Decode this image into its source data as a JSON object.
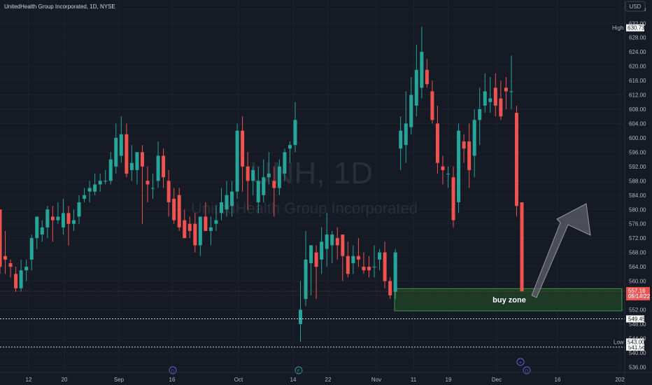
{
  "header": {
    "title": "UnitedHealth Group Incorporated, 1D, NYSE",
    "currency_button": "USD"
  },
  "watermark": {
    "symbol": "UNH, 1D",
    "name": "UnitedHealth Group Incorporated"
  },
  "colors": {
    "background": "#161a25",
    "up": "#26a69a",
    "down": "#ef5350",
    "grid": "#1e222d",
    "buy_zone_fill": "#1e3a26",
    "buy_zone_border": "#2e9e44",
    "arrow": "#5d606b"
  },
  "chart_data": {
    "type": "candlestick",
    "title": "UnitedHealth Group Incorporated, 1D, NYSE",
    "ylim": [
      534.5,
      638.5
    ],
    "y_ticks": [
      "536.00",
      "540.00",
      "544.00",
      "548.00",
      "552.00",
      "556.00",
      "560.00",
      "564.00",
      "568.00",
      "572.00",
      "576.00",
      "580.00",
      "584.00",
      "588.00",
      "592.00",
      "596.00",
      "600.00",
      "604.00",
      "608.00",
      "612.00",
      "616.00",
      "620.00",
      "624.00",
      "628.00",
      "632.00",
      "636.00"
    ],
    "x_ticks": [
      "12",
      "20",
      "Sep",
      "16",
      "Oct",
      "14",
      "22",
      "Nov",
      "11",
      "19",
      "Dec",
      "16",
      "202"
    ],
    "candles": [
      {
        "o": 580,
        "h": 580,
        "l": 562,
        "c": 564
      },
      {
        "o": 567,
        "h": 574,
        "l": 562,
        "c": 566
      },
      {
        "o": 565,
        "h": 566,
        "l": 561,
        "c": 564
      },
      {
        "o": 562,
        "h": 564,
        "l": 557,
        "c": 558
      },
      {
        "o": 558,
        "h": 566,
        "l": 557,
        "c": 563
      },
      {
        "o": 563,
        "h": 566,
        "l": 560,
        "c": 564
      },
      {
        "o": 566,
        "h": 573,
        "l": 563,
        "c": 572
      },
      {
        "o": 572,
        "h": 578,
        "l": 569,
        "c": 578
      },
      {
        "o": 573,
        "h": 577,
        "l": 571,
        "c": 575
      },
      {
        "o": 575,
        "h": 581,
        "l": 572,
        "c": 580
      },
      {
        "o": 578,
        "h": 581,
        "l": 571,
        "c": 577
      },
      {
        "o": 577,
        "h": 582,
        "l": 576,
        "c": 578
      },
      {
        "o": 575,
        "h": 583,
        "l": 573,
        "c": 579
      },
      {
        "o": 579,
        "h": 581,
        "l": 570,
        "c": 576
      },
      {
        "o": 576,
        "h": 580,
        "l": 574,
        "c": 577
      },
      {
        "o": 578,
        "h": 584,
        "l": 576,
        "c": 582
      },
      {
        "o": 583,
        "h": 586,
        "l": 582,
        "c": 584
      },
      {
        "o": 585,
        "h": 588,
        "l": 582,
        "c": 586
      },
      {
        "o": 585,
        "h": 590,
        "l": 584,
        "c": 587
      },
      {
        "o": 587,
        "h": 590,
        "l": 585,
        "c": 588
      },
      {
        "o": 588,
        "h": 591,
        "l": 587,
        "c": 588
      },
      {
        "o": 588,
        "h": 596,
        "l": 587,
        "c": 594
      },
      {
        "o": 592,
        "h": 604,
        "l": 590,
        "c": 600
      },
      {
        "o": 595,
        "h": 606,
        "l": 593,
        "c": 601
      },
      {
        "o": 601,
        "h": 604,
        "l": 589,
        "c": 590
      },
      {
        "o": 591,
        "h": 598,
        "l": 588,
        "c": 593
      },
      {
        "o": 591,
        "h": 596,
        "l": 587,
        "c": 596
      },
      {
        "o": 596,
        "h": 598,
        "l": 576,
        "c": 592
      },
      {
        "o": 588,
        "h": 592,
        "l": 582,
        "c": 587
      },
      {
        "o": 586,
        "h": 590,
        "l": 583,
        "c": 586
      },
      {
        "o": 588,
        "h": 599,
        "l": 586,
        "c": 595
      },
      {
        "o": 595,
        "h": 597,
        "l": 586,
        "c": 589
      },
      {
        "o": 588,
        "h": 591,
        "l": 578,
        "c": 582
      },
      {
        "o": 583,
        "h": 586,
        "l": 576,
        "c": 577
      },
      {
        "o": 584,
        "h": 586,
        "l": 574,
        "c": 575
      },
      {
        "o": 577,
        "h": 580,
        "l": 572,
        "c": 572
      },
      {
        "o": 576,
        "h": 578,
        "l": 572,
        "c": 574
      },
      {
        "o": 576,
        "h": 579,
        "l": 568,
        "c": 570
      },
      {
        "o": 570,
        "h": 578,
        "l": 567,
        "c": 578
      },
      {
        "o": 578,
        "h": 582,
        "l": 574,
        "c": 574
      },
      {
        "o": 574,
        "h": 578,
        "l": 570,
        "c": 575
      },
      {
        "o": 576,
        "h": 581,
        "l": 574,
        "c": 577
      },
      {
        "o": 579,
        "h": 586,
        "l": 577,
        "c": 582
      },
      {
        "o": 580,
        "h": 588,
        "l": 578,
        "c": 584
      },
      {
        "o": 581,
        "h": 588,
        "l": 578,
        "c": 585
      },
      {
        "o": 585,
        "h": 604,
        "l": 583,
        "c": 602
      },
      {
        "o": 602,
        "h": 606,
        "l": 585,
        "c": 592
      },
      {
        "o": 592,
        "h": 596,
        "l": 580,
        "c": 588
      },
      {
        "o": 588,
        "h": 592,
        "l": 584,
        "c": 591
      },
      {
        "o": 582,
        "h": 592,
        "l": 579,
        "c": 588
      },
      {
        "o": 584,
        "h": 594,
        "l": 582,
        "c": 589
      },
      {
        "o": 589,
        "h": 596,
        "l": 587,
        "c": 590
      },
      {
        "o": 588,
        "h": 592,
        "l": 578,
        "c": 586
      },
      {
        "o": 586,
        "h": 594,
        "l": 584,
        "c": 592
      },
      {
        "o": 590,
        "h": 597,
        "l": 588,
        "c": 596
      },
      {
        "o": 597,
        "h": 599,
        "l": 593,
        "c": 598
      },
      {
        "o": 598,
        "h": 610,
        "l": 596,
        "c": 605
      },
      {
        "o": 548,
        "h": 560,
        "l": 543,
        "c": 552
      },
      {
        "o": 555,
        "h": 574,
        "l": 553,
        "c": 566
      },
      {
        "o": 565,
        "h": 570,
        "l": 556,
        "c": 570
      },
      {
        "o": 568,
        "h": 570,
        "l": 555,
        "c": 564
      },
      {
        "o": 566,
        "h": 575,
        "l": 562,
        "c": 571
      },
      {
        "o": 569,
        "h": 579,
        "l": 564,
        "c": 573
      },
      {
        "o": 570,
        "h": 574,
        "l": 565,
        "c": 573
      },
      {
        "o": 572,
        "h": 575,
        "l": 566,
        "c": 570
      },
      {
        "o": 573,
        "h": 573,
        "l": 560,
        "c": 567
      },
      {
        "o": 567,
        "h": 571,
        "l": 561,
        "c": 562
      },
      {
        "o": 565,
        "h": 570,
        "l": 562,
        "c": 567
      },
      {
        "o": 567,
        "h": 572,
        "l": 564,
        "c": 566
      },
      {
        "o": 564,
        "h": 568,
        "l": 562,
        "c": 563
      },
      {
        "o": 564,
        "h": 567,
        "l": 561,
        "c": 563
      },
      {
        "o": 564,
        "h": 570,
        "l": 561,
        "c": 564
      },
      {
        "o": 566,
        "h": 569,
        "l": 563,
        "c": 568
      },
      {
        "o": 568,
        "h": 571,
        "l": 558,
        "c": 560
      },
      {
        "o": 560,
        "h": 561,
        "l": 555,
        "c": 556
      },
      {
        "o": 557,
        "h": 569,
        "l": 555,
        "c": 568
      },
      {
        "o": 597,
        "h": 606,
        "l": 591,
        "c": 602
      },
      {
        "o": 598,
        "h": 613,
        "l": 593,
        "c": 604
      },
      {
        "o": 603,
        "h": 617,
        "l": 601,
        "c": 612
      },
      {
        "o": 609,
        "h": 626,
        "l": 606,
        "c": 619
      },
      {
        "o": 614,
        "h": 631,
        "l": 611,
        "c": 624
      },
      {
        "o": 619,
        "h": 622,
        "l": 614,
        "c": 615
      },
      {
        "o": 613,
        "h": 616,
        "l": 604,
        "c": 605
      },
      {
        "o": 604,
        "h": 609,
        "l": 590,
        "c": 593
      },
      {
        "o": 592,
        "h": 595,
        "l": 587,
        "c": 591
      },
      {
        "o": 590,
        "h": 592,
        "l": 586,
        "c": 590
      },
      {
        "o": 589,
        "h": 592,
        "l": 575,
        "c": 577
      },
      {
        "o": 582,
        "h": 604,
        "l": 579,
        "c": 602
      },
      {
        "o": 599,
        "h": 601,
        "l": 593,
        "c": 597
      },
      {
        "o": 599,
        "h": 604,
        "l": 586,
        "c": 591
      },
      {
        "o": 595,
        "h": 608,
        "l": 589,
        "c": 605
      },
      {
        "o": 605,
        "h": 614,
        "l": 598,
        "c": 608
      },
      {
        "o": 609,
        "h": 618,
        "l": 607,
        "c": 613
      },
      {
        "o": 610,
        "h": 617,
        "l": 607,
        "c": 611
      },
      {
        "o": 614,
        "h": 618,
        "l": 606,
        "c": 609
      },
      {
        "o": 611,
        "h": 616,
        "l": 605,
        "c": 606
      },
      {
        "o": 614,
        "h": 617,
        "l": 608,
        "c": 613
      },
      {
        "o": 613,
        "h": 623,
        "l": 608,
        "c": 613
      },
      {
        "o": 607,
        "h": 609,
        "l": 578,
        "c": 581
      },
      {
        "o": 582,
        "h": 582,
        "l": 557,
        "c": 557.16
      }
    ],
    "last_price": "557.16",
    "countdown": "05:14:22",
    "high_label": "High",
    "high_value": "630.73",
    "low_label": "Low",
    "low_value": "543.00",
    "lines": [
      {
        "value": 549.45,
        "label": "549.45"
      },
      {
        "value": 541.56,
        "label": "541.56"
      }
    ],
    "buy_zone": {
      "label": "buy zone",
      "top": 557.9,
      "bottom": 551.7
    },
    "event_markers": [
      {
        "kind": "dividend",
        "text": "D"
      },
      {
        "kind": "earnings",
        "text": "E"
      },
      {
        "kind": "split",
        "text": "+"
      },
      {
        "kind": "dividend",
        "text": "D"
      }
    ]
  }
}
